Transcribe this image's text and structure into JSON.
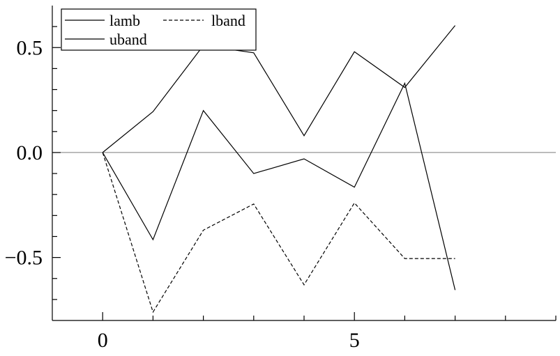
{
  "chart_data": {
    "type": "line",
    "x": [
      0,
      1,
      2,
      3,
      4,
      5,
      6,
      7
    ],
    "series": [
      {
        "name": "lamb",
        "style": "solid",
        "values": [
          0.0,
          -0.415,
          0.2,
          -0.1,
          -0.03,
          -0.165,
          0.33,
          -0.655
        ]
      },
      {
        "name": "lband",
        "style": "dashed",
        "values": [
          0.0,
          -0.76,
          -0.37,
          -0.245,
          -0.63,
          -0.24,
          -0.505,
          -0.505
        ]
      },
      {
        "name": "uband",
        "style": "solid",
        "values": [
          0.0,
          0.195,
          0.51,
          0.475,
          0.08,
          0.48,
          0.31,
          0.605
        ]
      }
    ],
    "xlim": [
      -1,
      9
    ],
    "ylim": [
      -0.8,
      0.7
    ],
    "x_ticks_labeled": [
      0,
      5
    ],
    "x_tick_labels": [
      "0",
      "5"
    ],
    "x_ticks_minor": [
      1,
      2,
      3,
      4,
      6,
      7,
      8,
      9
    ],
    "y_ticks_labeled": [
      -0.5,
      0.0,
      0.5
    ],
    "y_tick_labels": [
      "−0.5",
      "0.0",
      "0.5"
    ],
    "y_ticks_minor": [
      -0.7,
      -0.6,
      -0.4,
      -0.3,
      -0.2,
      -0.1,
      0.1,
      0.2,
      0.3,
      0.4,
      0.6
    ],
    "reference_line_y": 0.0,
    "legend_position": "top-left",
    "colors": {
      "lines": "#000000",
      "reference_line": "#7a7a7a",
      "background": "#ffffff"
    }
  }
}
